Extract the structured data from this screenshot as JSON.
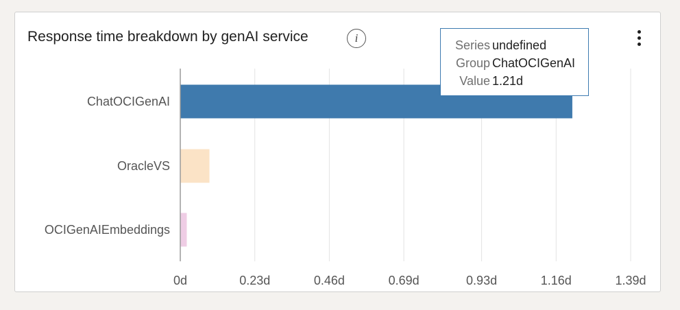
{
  "panel": {
    "title": "Response time breakdown by genAI service",
    "info_icon": "info-icon",
    "menu_icon": "kebab-menu-icon"
  },
  "chart_data": {
    "type": "bar",
    "orientation": "horizontal",
    "categories": [
      "ChatOCIGenAI",
      "OracleVS",
      "OCIGenAIEmbeddings"
    ],
    "values": [
      1.21,
      0.09,
      0.02
    ],
    "unit": "d",
    "colors": [
      "#3f7aad",
      "#fbe3c6",
      "#efcde5"
    ],
    "xlim": [
      0,
      1.39
    ],
    "xticks": [
      0,
      0.23,
      0.46,
      0.69,
      0.93,
      1.16,
      1.39
    ],
    "xtick_labels": [
      "0d",
      "0.23d",
      "0.46d",
      "0.69d",
      "0.93d",
      "1.16d",
      "1.39d"
    ],
    "grid": true,
    "legend": "none"
  },
  "tooltip": {
    "rows": [
      {
        "key": "Series",
        "value": "undefined"
      },
      {
        "key": "Group",
        "value": "ChatOCIGenAI"
      },
      {
        "key": "Value",
        "value": "1.21d"
      }
    ]
  }
}
